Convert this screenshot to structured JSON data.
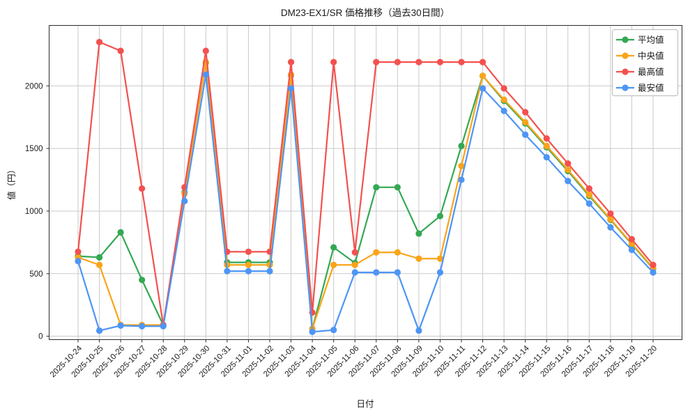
{
  "chart_data": {
    "type": "line",
    "title": "DM23-EX1/SR 価格推移（過去30日間）",
    "xlabel": "日付",
    "ylabel": "値（円）",
    "grid": true,
    "legend_position": "top-right",
    "ylim": [
      -27,
      2483
    ],
    "yticks": [
      0,
      500,
      1000,
      1500,
      2000
    ],
    "x": [
      "2025-10-24",
      "2025-10-25",
      "2025-10-26",
      "2025-10-27",
      "2025-10-28",
      "2025-10-29",
      "2025-10-30",
      "2025-10-31",
      "2025-11-01",
      "2025-11-02",
      "2025-11-03",
      "2025-11-04",
      "2025-11-05",
      "2025-11-06",
      "2025-11-07",
      "2025-11-08",
      "2025-11-09",
      "2025-11-10",
      "2025-11-11",
      "2025-11-12",
      "2025-11-13",
      "2025-11-14",
      "2025-11-15",
      "2025-11-16",
      "2025-11-17",
      "2025-11-18",
      "2025-11-19",
      "2025-11-20"
    ],
    "series": [
      {
        "name": "平均値",
        "color": "#34a853",
        "values": [
          640,
          630,
          830,
          450,
          90,
          1150,
          2185,
          590,
          590,
          590,
          2085,
          60,
          710,
          585,
          1190,
          1190,
          820,
          960,
          1520,
          2080,
          1880,
          1700,
          1510,
          1320,
          1120,
          930,
          735,
          540
        ]
      },
      {
        "name": "中央値",
        "color": "#faa41a",
        "values": [
          630,
          570,
          90,
          90,
          90,
          1140,
          2190,
          570,
          570,
          570,
          2090,
          60,
          570,
          570,
          670,
          670,
          620,
          620,
          1360,
          2080,
          1890,
          1710,
          1520,
          1330,
          1130,
          935,
          740,
          545
        ]
      },
      {
        "name": "最高値",
        "color": "#f3514f",
        "values": [
          675,
          2350,
          2280,
          1180,
          90,
          1190,
          2280,
          675,
          675,
          675,
          2190,
          190,
          2190,
          670,
          2190,
          2190,
          2190,
          2190,
          2190,
          2190,
          1980,
          1790,
          1580,
          1380,
          1180,
          980,
          775,
          570
        ]
      },
      {
        "name": "最安値",
        "color": "#4e95f5",
        "values": [
          600,
          45,
          85,
          80,
          80,
          1080,
          2090,
          520,
          520,
          520,
          1980,
          35,
          50,
          510,
          510,
          510,
          45,
          510,
          1250,
          1980,
          1800,
          1610,
          1430,
          1240,
          1060,
          870,
          690,
          510
        ]
      }
    ],
    "plot_style": {
      "grid_color": "#c9c9c9",
      "axis_color": "#2b2b2b",
      "legend_border": "#b8b8b8",
      "marker_radius": 4.6,
      "line_width": 2.2
    }
  }
}
